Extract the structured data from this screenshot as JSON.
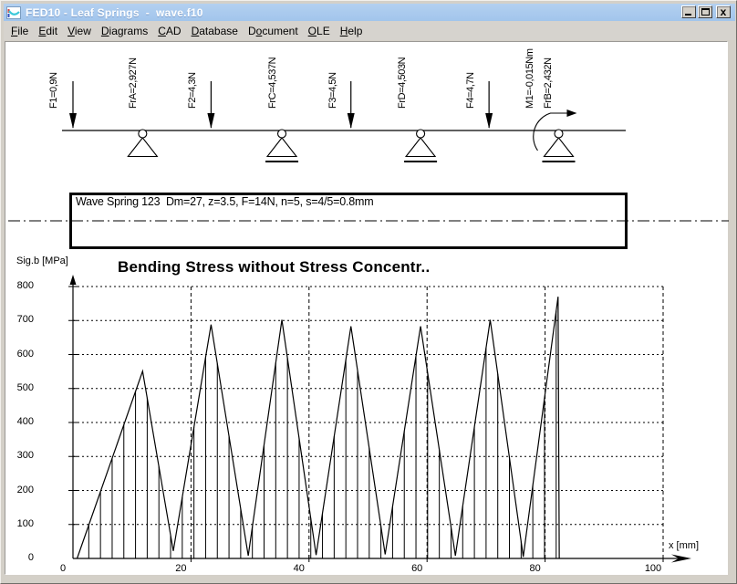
{
  "window": {
    "title": "FED10 - Leaf Springs  -  wave.f10",
    "icon": "leaf-spring-app-icon",
    "buttons": [
      {
        "name": "minimize",
        "glyph": "_"
      },
      {
        "name": "maximize",
        "glyph": "□"
      },
      {
        "name": "close",
        "glyph": "×"
      }
    ]
  },
  "menu": {
    "items": [
      {
        "label": "File",
        "accel": 0
      },
      {
        "label": "Edit",
        "accel": 0
      },
      {
        "label": "View",
        "accel": 0
      },
      {
        "label": "Diagrams",
        "accel": 0
      },
      {
        "label": "CAD",
        "accel": 0
      },
      {
        "label": "Database",
        "accel": 0
      },
      {
        "label": "Document",
        "accel": 1
      },
      {
        "label": "OLE",
        "accel": 0
      },
      {
        "label": "Help",
        "accel": 0
      }
    ]
  },
  "beam": {
    "items": [
      {
        "label": "F1=0,9N",
        "mm": 0.0,
        "marker": "arrow",
        "label_dx": -27
      },
      {
        "label": "FrA=2,927N",
        "mm": 11.8,
        "marker": "pin",
        "label_dx": -16
      },
      {
        "label": "F2=4,3N",
        "mm": 23.4,
        "marker": "arrow",
        "label_dx": -26
      },
      {
        "label": "FrC=4,537N",
        "mm": 35.4,
        "marker": "pin-ground",
        "label_dx": -16
      },
      {
        "label": "F3=4,5N",
        "mm": 47.1,
        "marker": "arrow",
        "label_dx": -26
      },
      {
        "label": "FrD=4,503N",
        "mm": 58.9,
        "marker": "pin-ground",
        "label_dx": -26
      },
      {
        "label": "F4=4,7N",
        "mm": 70.5,
        "marker": "arrow",
        "label_dx": -26
      },
      {
        "label": "M1=-0,015Nm",
        "mm": 82.3,
        "marker": "none",
        "label_dx": -37
      },
      {
        "label": "FrB=2,432N",
        "mm": 82.3,
        "marker": "pin-ground-moment",
        "label_dx": -17
      }
    ]
  },
  "drawing": {
    "caption": "Wave Spring 123  Dm=27, z=3.5, F=14N, n=5, s=4/5=0.8mm"
  },
  "chart_data": {
    "type": "line",
    "title": "Bending Stress without Stress Concentr..",
    "ylabel": "Sig.b [MPa]",
    "xlabel": "x [mm]",
    "xlim": [
      0,
      105
    ],
    "ylim": [
      0,
      800
    ],
    "x_ticks": [
      0,
      20,
      40,
      60,
      80,
      100
    ],
    "y_ticks": [
      0,
      100,
      200,
      300,
      400,
      500,
      600,
      700,
      800
    ],
    "grid": true,
    "legend": false,
    "hatch_step_mm": 1.98,
    "points": [
      [
        0.7,
        0
      ],
      [
        11.8,
        551
      ],
      [
        17.0,
        22
      ],
      [
        23.4,
        688
      ],
      [
        29.7,
        8
      ],
      [
        35.4,
        702
      ],
      [
        41.2,
        10
      ],
      [
        47.1,
        683
      ],
      [
        52.9,
        12
      ],
      [
        58.9,
        683
      ],
      [
        64.8,
        8
      ],
      [
        70.7,
        702
      ],
      [
        76.3,
        5
      ],
      [
        82.2,
        770
      ],
      [
        82.4,
        0
      ]
    ]
  },
  "colors": {
    "titlebar": "#a9c9ee",
    "chrome": "#d4d0c8",
    "ink": "#000000",
    "canvas": "#ffffff"
  }
}
